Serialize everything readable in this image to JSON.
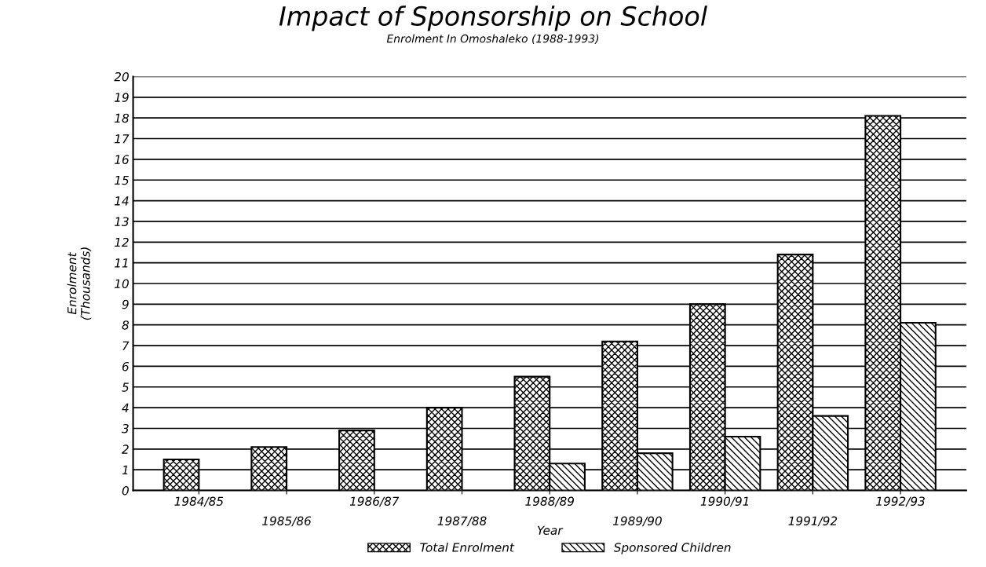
{
  "chart_data": {
    "type": "bar",
    "title": "Impact of Sponsorship on School",
    "subtitle": "Enrolment In Omoshaleko (1988-1993)",
    "xlabel": "Year",
    "ylabel": "Enrolment\n(Thousands)",
    "categories": [
      "1984/85",
      "1985/86",
      "1986/87",
      "1987/88",
      "1988/89",
      "1989/90",
      "1990/91",
      "1991/92",
      "1992/93"
    ],
    "series": [
      {
        "name": "Total Enrolment",
        "color": "#000000",
        "values": [
          1.5,
          2.1,
          2.9,
          4.0,
          5.5,
          7.2,
          9.0,
          11.4,
          18.1
        ]
      },
      {
        "name": "Sponsored Children",
        "color": "#000000",
        "values": [
          null,
          null,
          null,
          null,
          1.3,
          1.8,
          2.6,
          3.6,
          8.1
        ]
      }
    ],
    "ylim": [
      0,
      20
    ],
    "yticks": [
      0,
      1,
      2,
      3,
      4,
      5,
      6,
      7,
      8,
      9,
      10,
      11,
      12,
      13,
      14,
      15,
      16,
      17,
      18,
      19,
      20
    ],
    "grid": "y",
    "legend": "bottom"
  }
}
